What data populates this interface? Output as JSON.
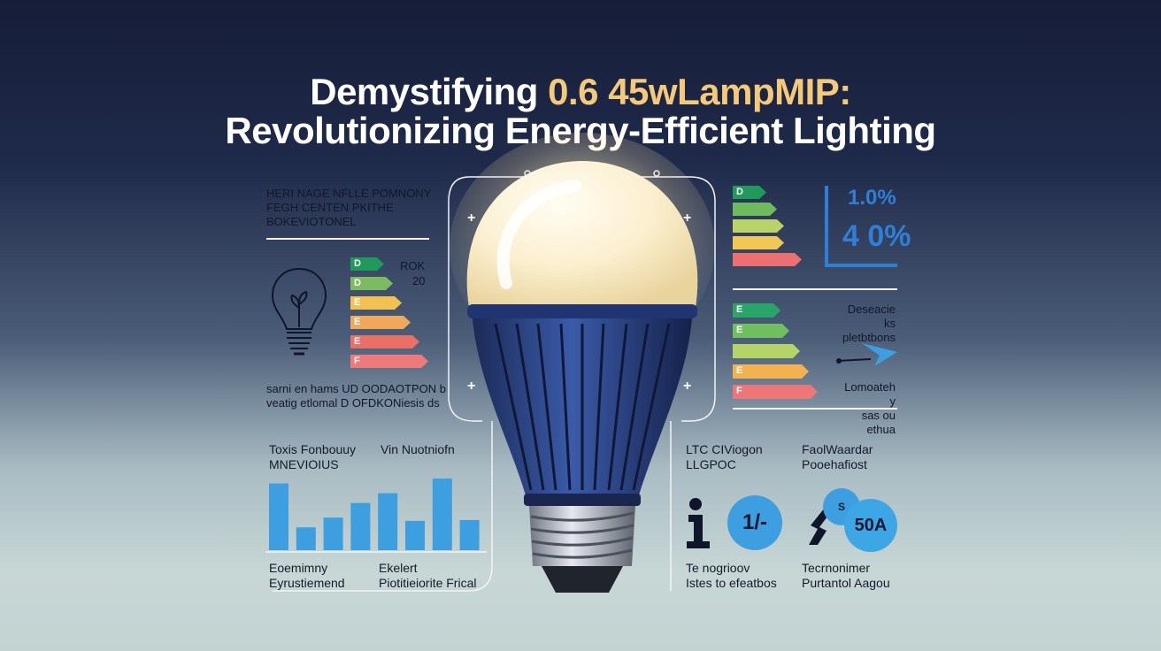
{
  "title": {
    "line1_prefix": "Demystifying ",
    "line1_accent": "0.6 45wLampMIP:",
    "line2": "Revolutionizing Energy-Efficient Lighting"
  },
  "left_top": {
    "heading_lines": [
      "HERI NAGE NFLLE POMNONY",
      "FEGH CENTEN  PKITHE",
      "BOKEVIOTONEL"
    ],
    "side_label_1": "ROK",
    "side_label_2": "20",
    "energy_letters": [
      "D",
      "D",
      "E",
      "E",
      "E",
      "F"
    ],
    "energy_colors": [
      "#1f9a5a",
      "#7cbb5f",
      "#f3c14f",
      "#f2a85a",
      "#ea6f67",
      "#ef7a7a"
    ],
    "caption_lines": [
      "sarni en hams   UD OODAOTPON b",
      "veatig etlomal  D OFDKONiesis ds"
    ]
  },
  "right_top": {
    "energy_letters": [
      "D",
      "",
      "",
      "",
      ""
    ],
    "energy_colors": [
      "#1f9a5a",
      "#6dbb5c",
      "#b8d36a",
      "#f1c856",
      "#ee6f6f"
    ],
    "stat_1": "1.0%",
    "stat_2": "4 0%"
  },
  "right_mid": {
    "energy_letters": [
      "E",
      "E",
      "",
      "E",
      "F"
    ],
    "energy_colors": [
      "#2aa56a",
      "#6fbf5f",
      "#b5d466",
      "#f2b24f",
      "#ef7676"
    ],
    "label_top_lines": [
      "Deseacie ks",
      "pletbtbons"
    ],
    "label_bottom_lines": [
      "Lomoateh y",
      "sas ou ethua"
    ]
  },
  "bottom_left": {
    "heading_1_lines": [
      "Toxis Fonbouuy",
      "MNEVIOIUS"
    ],
    "heading_2": "Vin Nuotniofn",
    "bar_chart": {
      "values": [
        82,
        28,
        40,
        58,
        70,
        36,
        88,
        37
      ]
    },
    "caption_1_lines": [
      "Eoemimny",
      "Eyrustiemend"
    ],
    "caption_2_lines": [
      "Ekelert",
      "Piotitieiorite Frical"
    ]
  },
  "bottom_right": {
    "heading_1_lines": [
      "LTC CIViogon",
      "LLGPOC"
    ],
    "heading_2_lines": [
      "FaolWaardar",
      "Pooehafiost"
    ],
    "circle_1": "1/-",
    "circle_2": "50A",
    "circle_2_small": "S",
    "caption_1_lines": [
      "Te nogrioov",
      "Istes to efeatbos"
    ],
    "caption_2_lines": [
      "Tecrnonimer",
      "Purtantol Aagou"
    ]
  },
  "colors": {
    "accent": "#f5c97a",
    "blue": "#3d9ee0",
    "stat_blue": "#2f7fd6"
  }
}
